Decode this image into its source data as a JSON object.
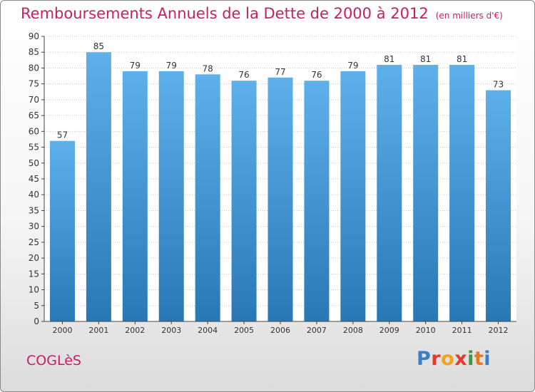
{
  "header": {
    "title": "Remboursements Annuels de la Dette de 2000 à 2012",
    "unit": "(en milliers d'€)"
  },
  "footer": {
    "commune": "COGLèS",
    "logo_text": "Proxiti",
    "logo_colors": [
      "#3d7fc4",
      "#e23b2b",
      "#f3a21b",
      "#e23b2b",
      "#3a9a3a",
      "#e8781e",
      "#3d7fc4"
    ]
  },
  "chart_data": {
    "type": "bar",
    "title": "Remboursements Annuels de la Dette de 2000 à 2012",
    "subtitle": "(en milliers d'€)",
    "categories": [
      "2000",
      "2001",
      "2002",
      "2003",
      "2004",
      "2005",
      "2006",
      "2007",
      "2008",
      "2009",
      "2010",
      "2011",
      "2012"
    ],
    "values": [
      57,
      85,
      79,
      79,
      78,
      76,
      77,
      76,
      79,
      81,
      81,
      81,
      73
    ],
    "ylim": [
      0,
      90
    ],
    "ytick_step": 5,
    "grid": true,
    "bar_color_light": "#5eb0ea",
    "bar_color_dark": "#2878b6",
    "text_color": "#c71f62"
  }
}
